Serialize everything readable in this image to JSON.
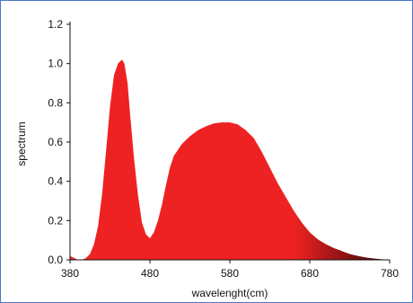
{
  "chart_data": {
    "type": "area",
    "title": "",
    "xlabel": "wavelenght(cm)",
    "ylabel": "spectrum",
    "xlim": [
      380,
      780
    ],
    "ylim": [
      0,
      1.2
    ],
    "x_ticks": [
      "380",
      "480",
      "580",
      "680",
      "780"
    ],
    "y_ticks": [
      "0.0",
      "0.2",
      "0.4",
      "0.6",
      "0.8",
      "1.0",
      "1.2"
    ],
    "grid": false,
    "legend": "none",
    "colors": {
      "fill_main": "#ee2222",
      "fill_tail": "#3a0505",
      "frame": "#4a78c8",
      "axis": "#111111"
    },
    "series": [
      {
        "x": [
          380,
          385,
          390,
          395,
          400,
          405,
          410,
          415,
          420,
          425,
          430,
          435,
          440,
          445,
          448,
          452,
          455,
          460,
          465,
          470,
          475,
          480,
          485,
          490,
          495,
          500,
          505,
          510,
          515,
          520,
          530,
          540,
          550,
          560,
          570,
          580,
          585,
          590,
          600,
          610,
          620,
          630,
          640,
          650,
          660,
          670,
          680,
          690,
          700,
          710,
          720,
          730,
          740,
          750,
          760,
          770,
          780
        ],
        "y": [
          0.02,
          0.01,
          0.0,
          0.0,
          0.01,
          0.03,
          0.08,
          0.17,
          0.33,
          0.55,
          0.78,
          0.94,
          1.0,
          1.02,
          1.0,
          0.9,
          0.75,
          0.52,
          0.33,
          0.19,
          0.13,
          0.11,
          0.14,
          0.2,
          0.28,
          0.38,
          0.47,
          0.53,
          0.56,
          0.59,
          0.63,
          0.66,
          0.68,
          0.695,
          0.7,
          0.7,
          0.695,
          0.69,
          0.66,
          0.62,
          0.55,
          0.47,
          0.39,
          0.32,
          0.25,
          0.19,
          0.14,
          0.105,
          0.08,
          0.06,
          0.045,
          0.03,
          0.02,
          0.012,
          0.007,
          0.003,
          0.0
        ]
      }
    ]
  }
}
